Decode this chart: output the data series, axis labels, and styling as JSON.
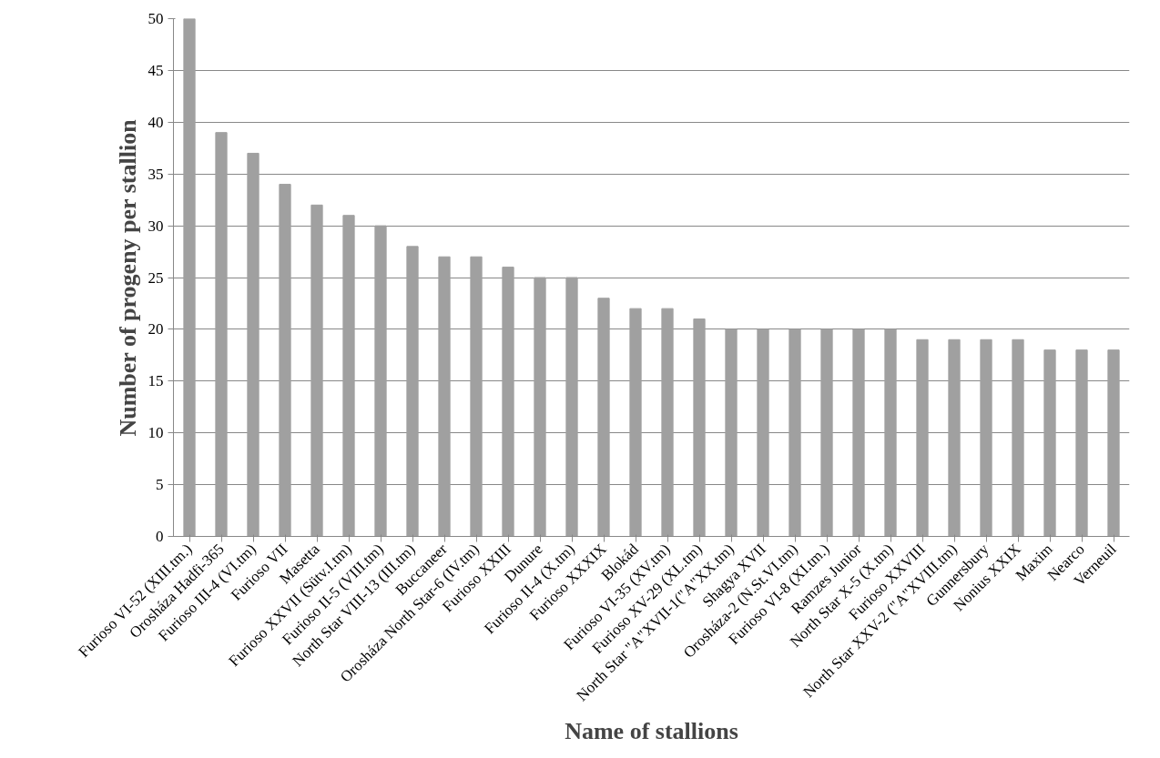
{
  "chart_data": {
    "type": "bar",
    "xlabel": "Name of stallions",
    "ylabel": "Number of progeny per stallion",
    "categories": [
      "Furioso VI-52 (XIII.tm.)",
      "Orosháza Hadfi-365",
      "Furioso III-4 (VI.tm)",
      "Furioso VII",
      "Masetta",
      "Furioso XXVII (Sütv.I.tm)",
      "Furioso II-5 (VIII.tm)",
      "North Star VIII-13 (III.tm)",
      "Buccaneer",
      "Orosháza North Star-6 (IV.tm)",
      "Furioso XXIII",
      "Dunure",
      "Furioso II-4 (X.tm)",
      "Furioso XXXIX",
      "Blokád",
      "Furioso VI-35 (XV.tm)",
      "Furioso XV-29 (XL.tm)",
      "North Star \"A\"XVII-1(\"A\"XX.tm)",
      "Shagya XVII",
      "Orosháza-2 (N.St.VI.tm)",
      "Furioso VI-8 (XI.tm.)",
      "Ramzes Junior",
      "North Star X-5 (X.tm)",
      "Furioso XXVIII",
      "North Star XXV-2 (\"A\"XVIII.tm)",
      "Gunnersbury",
      "Nonius XXIX",
      "Maxim",
      "Nearco",
      "Verneuil"
    ],
    "values": [
      50,
      39,
      37,
      34,
      32,
      31,
      30,
      28,
      27,
      27,
      26,
      25,
      25,
      23,
      22,
      22,
      21,
      20,
      20,
      20,
      20,
      20,
      20,
      19,
      19,
      19,
      19,
      18,
      18,
      18
    ],
    "color": "#a0a0a0",
    "ylim": [
      0,
      50
    ],
    "yticks": [
      0,
      5,
      10,
      15,
      20,
      25,
      30,
      35,
      40,
      45,
      50
    ],
    "grid": "y"
  }
}
